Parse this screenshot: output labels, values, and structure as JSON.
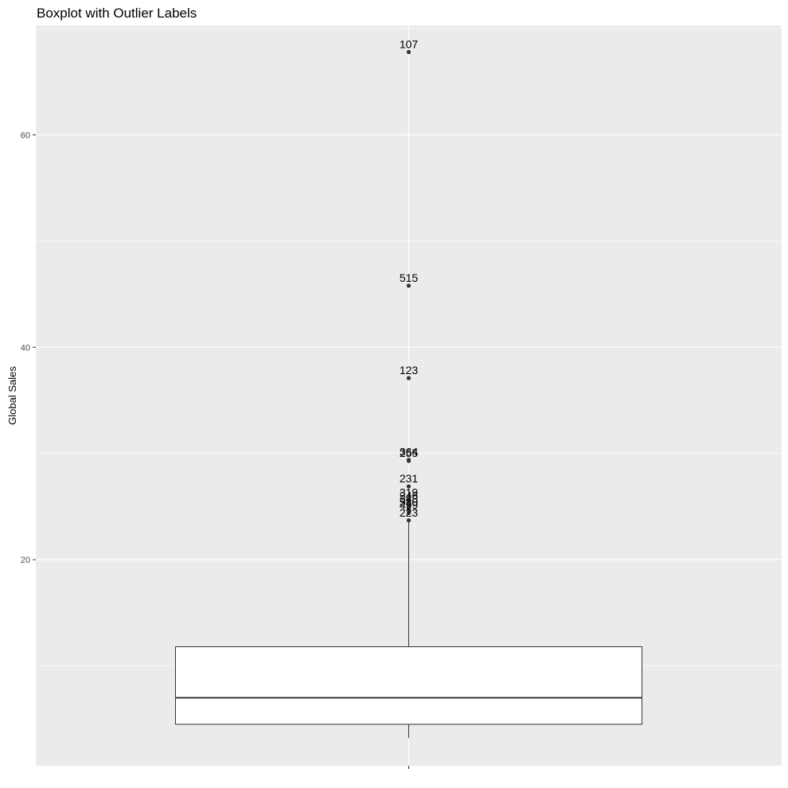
{
  "chart_data": {
    "type": "boxplot",
    "title": "Boxplot with Outlier Labels",
    "xlabel": "",
    "ylabel": "Global Sales",
    "ylim": [
      0.6,
      70.3
    ],
    "yticks": [
      20,
      40,
      60
    ],
    "grid": true,
    "box": {
      "lower_whisker": 3.2,
      "q1": 4.5,
      "median": 7.0,
      "q3": 11.8,
      "upper_whisker": 23.7
    },
    "outliers": [
      {
        "label": "107",
        "value": 67.8
      },
      {
        "label": "515",
        "value": 45.8
      },
      {
        "label": "123",
        "value": 37.1
      },
      {
        "label": "364",
        "value": 29.4
      },
      {
        "label": "255",
        "value": 29.3
      },
      {
        "label": "231",
        "value": 26.9
      },
      {
        "label": "319",
        "value": 25.6
      },
      {
        "label": "246",
        "value": 25.3
      },
      {
        "label": "348",
        "value": 25.0
      },
      {
        "label": "530",
        "value": 24.7
      },
      {
        "label": "499",
        "value": 24.4
      },
      {
        "label": "223",
        "value": 23.7
      }
    ],
    "colors": {
      "panel": "#ebebeb",
      "grid": "#ffffff",
      "box_fill": "#ffffff",
      "line": "#333333",
      "point": "#333333"
    }
  }
}
